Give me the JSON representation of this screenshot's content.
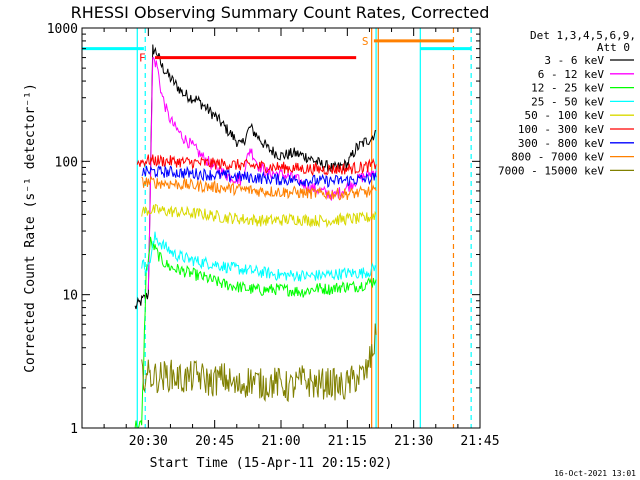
{
  "chart_data": {
    "type": "line",
    "title": "RHESSI Observing Summary Count Rates, Corrected",
    "xlabel": "Start Time (15-Apr-11 20:15:02)",
    "ylabel": "Corrected Count Rate (s⁻¹ detector⁻¹)",
    "y_scale": "log",
    "ylim": [
      1,
      1000
    ],
    "y_ticks": [
      "1",
      "10",
      "100",
      "1000"
    ],
    "x_range_min": [
      0,
      90
    ],
    "x_ticks": [
      {
        "min": 15,
        "label": "20:30"
      },
      {
        "min": 30,
        "label": "20:45"
      },
      {
        "min": 45,
        "label": "21:00"
      },
      {
        "min": 60,
        "label": "21:15"
      },
      {
        "min": 75,
        "label": "21:30"
      },
      {
        "min": 90,
        "label": "21:45"
      }
    ],
    "legend_header": [
      "Det 1,3,4,5,6,9,",
      "Att 0"
    ],
    "legend_position": "right, outside plot",
    "footer_date": "16-Oct-2021 13:01",
    "series": [
      {
        "name": "3 - 6 keV",
        "color": "#000000",
        "x": [
          12,
          13.5,
          15,
          16,
          17,
          18,
          20,
          23,
          26,
          30,
          33,
          36,
          38,
          40,
          42,
          45,
          48,
          51,
          54,
          57,
          60,
          62,
          64,
          65.5,
          66.5
        ],
        "y": [
          8,
          9,
          10,
          700,
          650,
          520,
          420,
          320,
          290,
          220,
          170,
          130,
          180,
          150,
          125,
          110,
          115,
          108,
          95,
          88,
          95,
          125,
          140,
          150,
          170
        ]
      },
      {
        "name": "6 - 12 keV",
        "color": "#ff00ff",
        "x": [
          15,
          16,
          17,
          18,
          19.5,
          21,
          23,
          25,
          27,
          30,
          33,
          36,
          38,
          40,
          42,
          45,
          48,
          51,
          54,
          57,
          60,
          62,
          64,
          65.5,
          66.5
        ],
        "y": [
          10,
          600,
          520,
          320,
          220,
          180,
          150,
          130,
          110,
          90,
          78,
          72,
          125,
          92,
          82,
          80,
          75,
          65,
          60,
          55,
          64,
          72,
          78,
          82,
          85
        ]
      },
      {
        "name": "12 - 25 keV",
        "color": "#00ff00",
        "x": [
          12,
          13.5,
          14.5,
          15.5,
          16.5,
          18,
          20,
          23,
          26,
          29,
          32,
          35,
          38,
          41,
          44,
          47,
          50,
          53,
          56,
          59,
          62,
          64,
          65.5,
          66.5
        ],
        "y": [
          1,
          1,
          14,
          25,
          22,
          18,
          16,
          15,
          14,
          13,
          12,
          11.5,
          11,
          10.8,
          11,
          10.8,
          10.5,
          11.2,
          11,
          11.5,
          11.5,
          12,
          12.5,
          13
        ]
      },
      {
        "name": "25 - 50 keV",
        "color": "#00ffff",
        "x": [
          13.5,
          15,
          16.5,
          18,
          21,
          24,
          27,
          30,
          33,
          36,
          39,
          42,
          45,
          48,
          51,
          54,
          57,
          60,
          63,
          65,
          66.5
        ],
        "y": [
          17,
          16,
          27,
          24,
          20,
          18.5,
          17.5,
          17,
          16,
          15.5,
          15,
          14.5,
          14,
          14,
          13.8,
          14,
          14.2,
          14.5,
          14.5,
          15,
          16
        ]
      },
      {
        "name": "50 - 100 keV",
        "color": "#d9d900",
        "x": [
          13.5,
          15,
          17,
          20,
          24,
          28,
          32,
          36,
          40,
          44,
          48,
          52,
          56,
          60,
          63,
          65,
          66.5
        ],
        "y": [
          42,
          43,
          43,
          42,
          41,
          40,
          38,
          37,
          36,
          36,
          37,
          36,
          36,
          37,
          37,
          38,
          40
        ]
      },
      {
        "name": "100 - 300 keV",
        "color": "#ff0000",
        "x": [
          12.5,
          15,
          20,
          25,
          30,
          35,
          40,
          45,
          50,
          55,
          60,
          63,
          65,
          66.5
        ],
        "y": [
          98,
          102,
          100,
          98,
          96,
          94,
          92,
          90,
          88,
          87,
          88,
          90,
          92,
          95
        ]
      },
      {
        "name": "300 - 800 keV",
        "color": "#0000ff",
        "x": [
          13.5,
          15,
          20,
          25,
          30,
          35,
          40,
          45,
          50,
          55,
          60,
          63,
          65,
          66.5
        ],
        "y": [
          82,
          84,
          83,
          81,
          79,
          77,
          75,
          73,
          72,
          71,
          72,
          73,
          74,
          76
        ]
      },
      {
        "name": "800 - 7000 keV",
        "color": "#ff8000",
        "x": [
          13.5,
          15,
          20,
          25,
          30,
          35,
          40,
          45,
          50,
          55,
          60,
          63,
          65,
          66.5
        ],
        "y": [
          70,
          70,
          68,
          66,
          64,
          62,
          60,
          59,
          58,
          57,
          57,
          58,
          59,
          60
        ]
      },
      {
        "name": "7000 - 15000 keV",
        "color": "#808000",
        "x": [
          13.5,
          15,
          17,
          20,
          23,
          26,
          29,
          32,
          35,
          38,
          41,
          44,
          47,
          50,
          53,
          56,
          59,
          62,
          64,
          65.5,
          66.5
        ],
        "y": [
          2.5,
          2.5,
          2.4,
          2.5,
          2.3,
          2.5,
          2.2,
          2.4,
          2.0,
          2.3,
          2.1,
          2.2,
          2.0,
          2.3,
          2.1,
          2.2,
          2.0,
          2.4,
          2.5,
          3.5,
          5
        ]
      }
    ],
    "spacecraft_night_bars": [
      {
        "color": "#00ffff",
        "x": [
          0,
          14
        ],
        "y": 700
      },
      {
        "color": "#00ffff",
        "x": [
          76.5,
          88
        ],
        "y": 700
      }
    ],
    "saa_bar": {
      "color": "#ff8000",
      "x": [
        66,
        84
      ],
      "y": 800
    },
    "flare_bar": {
      "color": "#ff0000",
      "x": [
        16.5,
        62
      ],
      "y": 600
    },
    "marker_labels": {
      "flare": "F",
      "saa": "S"
    },
    "vertical_lines": [
      {
        "x": 12.5,
        "color": "#00ffff",
        "style": "solid"
      },
      {
        "x": 14.3,
        "color": "#00ffff",
        "style": "dashed"
      },
      {
        "x": 66.5,
        "color": "#00ffff",
        "style": "solid"
      },
      {
        "x": 76.5,
        "color": "#00ffff",
        "style": "solid"
      },
      {
        "x": 88,
        "color": "#00ffff",
        "style": "dashed"
      },
      {
        "x": 65.5,
        "color": "#ff8000",
        "style": "solid"
      },
      {
        "x": 67,
        "color": "#ff8000",
        "style": "solid"
      },
      {
        "x": 84,
        "color": "#ff8000",
        "style": "dashed"
      }
    ]
  }
}
